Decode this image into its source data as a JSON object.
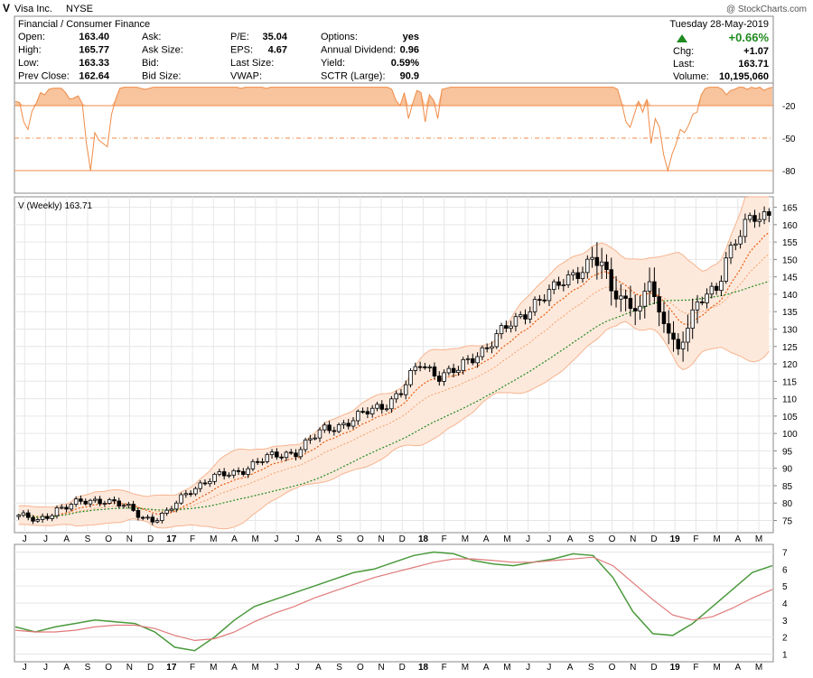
{
  "header": {
    "symbol": "V",
    "company": "Visa Inc.",
    "exchange": "NYSE",
    "industry": "Financial / Consumer Finance",
    "watermark": "@ StockCharts.com",
    "date": "Tuesday  28-May-2019",
    "change_pct": "+0.66%",
    "chg_label": "Chg:",
    "chg_value": "+1.07",
    "last_label": "Last:",
    "last_value": "163.71",
    "volume_label": "Volume:",
    "volume_value": "10,195,060",
    "quote_rows": [
      [
        {
          "label": "Open:",
          "value": "163.40"
        },
        {
          "label": "Ask:",
          "value": ""
        },
        {
          "label": "P/E:",
          "value": "35.04"
        },
        {
          "label": "Options:",
          "value": "yes"
        }
      ],
      [
        {
          "label": "High:",
          "value": "165.77"
        },
        {
          "label": "Ask Size:",
          "value": ""
        },
        {
          "label": "EPS:",
          "value": "4.67"
        },
        {
          "label": "Annual Dividend:",
          "value": "0.96"
        }
      ],
      [
        {
          "label": "Low:",
          "value": "163.33"
        },
        {
          "label": "Bid:",
          "value": ""
        },
        {
          "label": "Last Size:",
          "value": ""
        },
        {
          "label": "Yield:",
          "value": "0.59%"
        }
      ],
      [
        {
          "label": "Prev Close:",
          "value": "162.64"
        },
        {
          "label": "Bid Size:",
          "value": ""
        },
        {
          "label": "VWAP:",
          "value": ""
        },
        {
          "label": "SCTR (Large):",
          "value": "90.9"
        }
      ]
    ]
  },
  "colors": {
    "up_fill": "#ffffff",
    "down_fill": "#000000",
    "candle_stroke": "#000000",
    "band_fill": "#fde9dc",
    "band_line": "#f6b48f",
    "ema_short": "#e8590c",
    "ema_mid": "#f2a06a",
    "sma_long": "#1f8a1f",
    "pmo": "#4a9a3c",
    "pmo_signal": "#e07a7a",
    "williams_fill": "#f7c49d",
    "williams_line": "#ef8b47",
    "grid": "#e6e6e6",
    "border": "#888888"
  },
  "chart_data": [
    {
      "type": "area",
      "indicator_panel": "top",
      "y_ticks": [
        -20,
        -50,
        -80
      ],
      "ylim": [
        -100,
        0
      ],
      "reference_lines": [
        -20,
        -50,
        -80
      ],
      "values": [
        -16,
        -17,
        -35,
        -42,
        -25,
        -18,
        -8,
        -10,
        -5,
        -4,
        -4,
        -4,
        -8,
        -14,
        -13,
        -11,
        -18,
        -55,
        -80,
        -45,
        -52,
        -55,
        -58,
        -28,
        -14,
        -4,
        -3,
        -3,
        -3,
        -3,
        -4,
        -5,
        -4,
        -3,
        -3,
        -3,
        -3,
        -3,
        -3,
        -3,
        -3,
        -3,
        -3,
        -3,
        -3,
        -3,
        -3,
        -3,
        -3,
        -3,
        -3,
        -3,
        -3,
        -3,
        -4,
        -3,
        -3,
        -3,
        -3,
        -3,
        -4,
        -3,
        -3,
        -3,
        -3,
        -3,
        -3,
        -3,
        -3,
        -3,
        -3,
        -3,
        -3,
        -3,
        -3,
        -3,
        -3,
        -3,
        -3,
        -3,
        -3,
        -3,
        -3,
        -3,
        -3,
        -3,
        -3,
        -3,
        -3,
        -3,
        -5,
        -15,
        -20,
        -8,
        -32,
        -18,
        -6,
        -8,
        -35,
        -10,
        -15,
        -32,
        -5,
        -4,
        -3,
        -3,
        -3,
        -3,
        -3,
        -3,
        -3,
        -3,
        -3,
        -3,
        -3,
        -3,
        -3,
        -3,
        -3,
        -3,
        -3,
        -3,
        -3,
        -3,
        -3,
        -3,
        -3,
        -3,
        -3,
        -3,
        -3,
        -3,
        -3,
        -3,
        -3,
        -3,
        -3,
        -3,
        -3,
        -3,
        -3,
        -3,
        -3,
        -3,
        -5,
        -18,
        -35,
        -40,
        -28,
        -16,
        -26,
        -14,
        -55,
        -32,
        -40,
        -65,
        -80,
        -65,
        -55,
        -42,
        -45,
        -38,
        -28,
        -26,
        -10,
        -4,
        -3,
        -3,
        -3,
        -5,
        -10,
        -6,
        -5,
        -3,
        -3,
        -5,
        -3,
        -4,
        -3,
        -6,
        -4,
        -3
      ]
    },
    {
      "type": "candlestick",
      "title": "V (Weekly) 163.71",
      "y_ticks": [
        75,
        80,
        85,
        90,
        95,
        100,
        105,
        110,
        115,
        120,
        125,
        130,
        135,
        140,
        145,
        150,
        155,
        160,
        165
      ],
      "ylim": [
        71.5,
        168
      ],
      "x_axis_labels": [
        "J",
        "J",
        "A",
        "S",
        "O",
        "N",
        "D",
        "17",
        "F",
        "M",
        "A",
        "M",
        "J",
        "J",
        "A",
        "S",
        "O",
        "N",
        "D",
        "18",
        "F",
        "M",
        "A",
        "M",
        "J",
        "J",
        "A",
        "S",
        "O",
        "N",
        "D",
        "19",
        "F",
        "M",
        "A",
        "M"
      ],
      "weeks": 158,
      "anchors": [
        [
          0,
          76.5
        ],
        [
          4,
          74.5
        ],
        [
          8,
          78.5
        ],
        [
          13,
          80
        ],
        [
          18,
          81.2
        ],
        [
          22,
          79
        ],
        [
          26,
          76
        ],
        [
          28,
          75.5
        ],
        [
          31,
          77
        ],
        [
          36,
          84
        ],
        [
          40,
          87
        ],
        [
          45,
          88.5
        ],
        [
          50,
          92
        ],
        [
          54,
          93.5
        ],
        [
          58,
          95
        ],
        [
          64,
          101
        ],
        [
          70,
          104
        ],
        [
          76,
          108
        ],
        [
          80,
          112
        ],
        [
          84,
          120
        ],
        [
          88,
          117
        ],
        [
          92,
          118
        ],
        [
          96,
          123
        ],
        [
          100,
          128
        ],
        [
          104,
          132
        ],
        [
          108,
          138
        ],
        [
          112,
          141
        ],
        [
          116,
          146
        ],
        [
          120,
          150
        ],
        [
          122,
          148
        ],
        [
          124,
          141
        ],
        [
          128,
          138
        ],
        [
          130,
          135
        ],
        [
          132,
          144
        ],
        [
          134,
          133
        ],
        [
          136,
          131
        ],
        [
          138,
          124
        ],
        [
          140,
          131
        ],
        [
          142,
          136
        ],
        [
          144,
          140
        ],
        [
          146,
          142
        ],
        [
          148,
          151
        ],
        [
          150,
          155
        ],
        [
          152,
          159
        ],
        [
          154,
          162
        ],
        [
          156,
          163
        ],
        [
          157,
          163.71
        ]
      ],
      "overlays": [
        "EMA",
        "EMA",
        "SMA",
        "Price band"
      ]
    },
    {
      "type": "line",
      "indicator_panel": "bottom",
      "y_ticks": [
        1,
        2,
        3,
        4,
        5,
        6,
        7
      ],
      "ylim": [
        0.6,
        7.4
      ],
      "x_axis_labels": [
        "J",
        "J",
        "A",
        "S",
        "O",
        "N",
        "D",
        "17",
        "F",
        "M",
        "A",
        "M",
        "J",
        "J",
        "A",
        "S",
        "O",
        "N",
        "D",
        "18",
        "F",
        "M",
        "A",
        "M",
        "J",
        "J",
        "A",
        "S",
        "O",
        "N",
        "D",
        "19",
        "F",
        "M",
        "A",
        "M"
      ],
      "series": [
        {
          "values": [
            2.6,
            2.3,
            2.6,
            2.8,
            3.0,
            2.9,
            2.8,
            2.3,
            1.4,
            1.2,
            2.0,
            3.0,
            3.8,
            4.2,
            4.6,
            5.0,
            5.4,
            5.8,
            6.0,
            6.4,
            6.8,
            7.0,
            6.9,
            6.5,
            6.3,
            6.2,
            6.4,
            6.6,
            6.9,
            6.8,
            5.5,
            3.5,
            2.2,
            2.1,
            2.8,
            3.8,
            4.8,
            5.8,
            6.2
          ]
        },
        {
          "values": [
            2.4,
            2.3,
            2.3,
            2.4,
            2.6,
            2.7,
            2.7,
            2.5,
            2.1,
            1.8,
            1.9,
            2.3,
            2.9,
            3.4,
            3.8,
            4.3,
            4.7,
            5.1,
            5.5,
            5.8,
            6.1,
            6.4,
            6.6,
            6.6,
            6.5,
            6.4,
            6.4,
            6.5,
            6.6,
            6.7,
            6.2,
            5.2,
            4.2,
            3.3,
            3.0,
            3.2,
            3.7,
            4.3,
            4.8
          ]
        }
      ]
    }
  ]
}
